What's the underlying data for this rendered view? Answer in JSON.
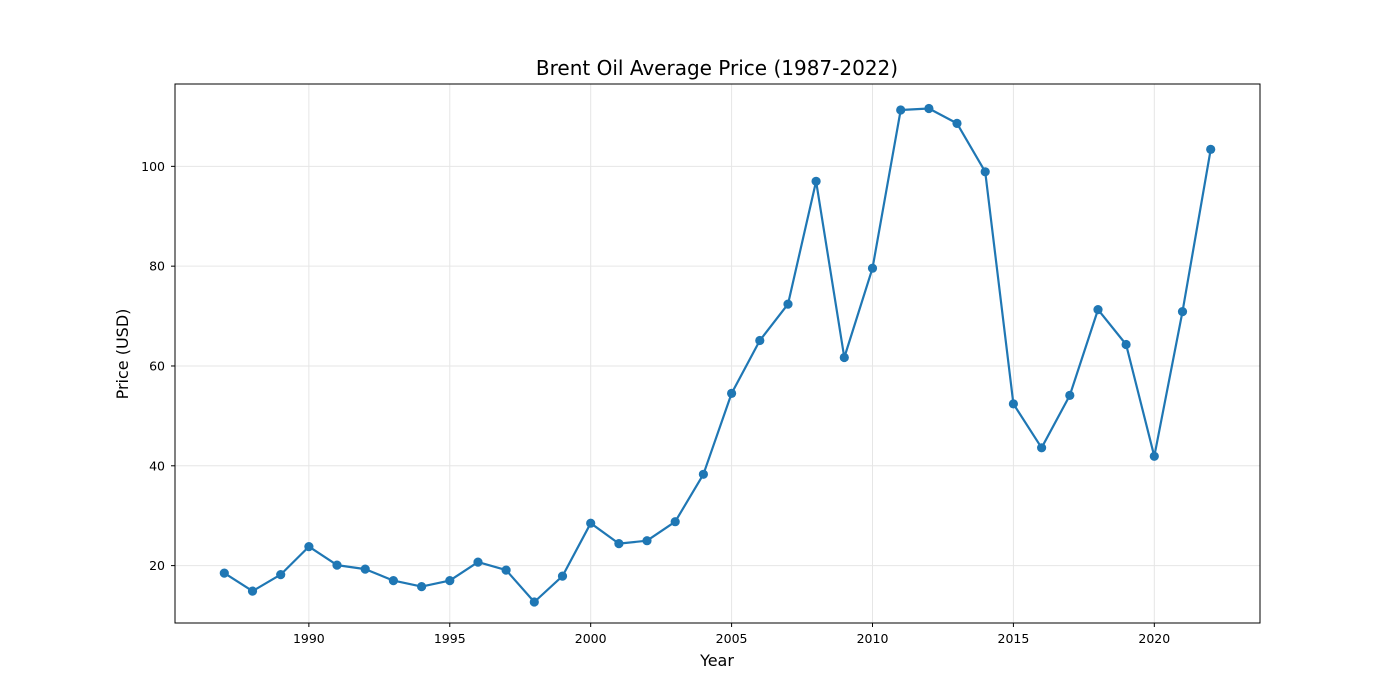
{
  "chart_data": {
    "type": "line",
    "title": "Brent Oil Average Price (1987-2022)",
    "xlabel": "Year",
    "ylabel": "Price (USD)",
    "xlim": [
      1985.25,
      1923.75
    ],
    "ylim": [
      8.5,
      116.5
    ],
    "x_ticks": [
      1990,
      1995,
      2000,
      2005,
      2010,
      2015,
      2020
    ],
    "y_ticks": [
      20,
      40,
      60,
      80,
      100
    ],
    "grid": true,
    "marker": "circle",
    "series": [
      {
        "color": "#1f77b4",
        "x": [
          1987,
          1988,
          1989,
          1990,
          1991,
          1992,
          1993,
          1994,
          1995,
          1996,
          1997,
          1998,
          1999,
          2000,
          2001,
          2002,
          2003,
          2004,
          2005,
          2006,
          2007,
          2008,
          2009,
          2010,
          2011,
          2012,
          2013,
          2014,
          2015,
          2016,
          2017,
          2018,
          2019,
          2020,
          2021,
          2022
        ],
        "values": [
          18.5,
          14.9,
          18.2,
          23.8,
          20.1,
          19.3,
          17.0,
          15.8,
          17.0,
          20.7,
          19.1,
          12.7,
          17.9,
          28.5,
          24.4,
          25.0,
          28.8,
          38.3,
          54.5,
          65.1,
          72.4,
          97.0,
          61.7,
          79.6,
          111.3,
          111.6,
          108.6,
          98.9,
          52.4,
          43.6,
          54.1,
          71.3,
          64.3,
          41.9,
          70.9,
          103.4
        ]
      }
    ]
  }
}
